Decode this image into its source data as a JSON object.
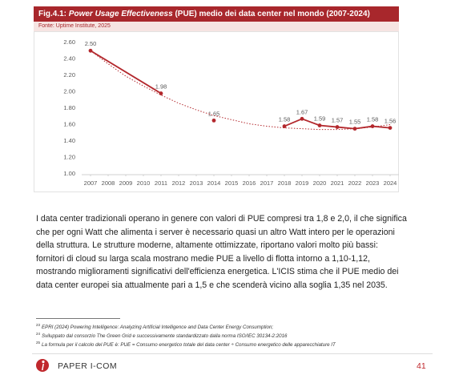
{
  "chart_data": {
    "type": "line",
    "title_parts": [
      "Fig.4.1: ",
      "Power Usage Effectiveness",
      " (PUE) medio dei data center nel mondo (2007-2024)"
    ],
    "source": "Fonte: Uptime Institute, 2025",
    "xlim": [
      2006.5,
      2024.5
    ],
    "xticks": [
      2007,
      2008,
      2009,
      2010,
      2011,
      2012,
      2013,
      2014,
      2015,
      2016,
      2017,
      2018,
      2019,
      2020,
      2021,
      2022,
      2023,
      2024
    ],
    "ylim": [
      1.0,
      2.6
    ],
    "yticks": [
      {
        "value": 1.0,
        "label": "1.00"
      },
      {
        "value": 1.2,
        "label": "1.20"
      },
      {
        "value": 1.4,
        "label": "1.40"
      },
      {
        "value": 1.6,
        "label": "1.60"
      },
      {
        "value": 1.8,
        "label": "1.80"
      },
      {
        "value": 2.0,
        "label": "2.00"
      },
      {
        "value": 2.2,
        "label": "2.20"
      },
      {
        "value": 2.4,
        "label": "2.40"
      },
      {
        "value": 2.6,
        "label": "2.60"
      }
    ],
    "grid": false,
    "series": [
      {
        "color": "#b3282d",
        "x": [
          2007,
          2011
        ],
        "values": [
          2.5,
          1.98
        ],
        "value_labels": [
          "2.50",
          "1.98"
        ]
      },
      {
        "color": "#b3282d",
        "x": [
          2014
        ],
        "values": [
          1.65
        ],
        "value_labels": [
          "1.65"
        ]
      },
      {
        "color": "#b3282d",
        "x": [
          2018,
          2019,
          2020,
          2021,
          2022,
          2023,
          2024
        ],
        "values": [
          1.58,
          1.67,
          1.59,
          1.57,
          1.55,
          1.58,
          1.56
        ],
        "value_labels": [
          "1.58",
          "1.67",
          "1.59",
          "1.57",
          "1.55",
          "1.58",
          "1.56"
        ]
      },
      {
        "color": "#b3282d",
        "style": "dotted",
        "x": [
          2007,
          2008,
          2009,
          2010,
          2011,
          2012,
          2013,
          2014,
          2015,
          2016,
          2017,
          2018,
          2019,
          2020,
          2021,
          2022,
          2023,
          2024
        ],
        "values": [
          2.5,
          2.34,
          2.19,
          2.07,
          1.96,
          1.86,
          1.78,
          1.71,
          1.66,
          1.61,
          1.58,
          1.56,
          1.55,
          1.54,
          1.54,
          1.55,
          1.57,
          1.6
        ]
      }
    ]
  },
  "body_lines": [
    "I data center tradizionali operano in genere con valori di PUE compresi tra 1,8 e 2,0, il che significa",
    "che per ogni Watt che alimenta i server è necessario quasi un altro Watt intero per le operazioni",
    "della struttura. Le strutture moderne, altamente ottimizzate, riportano valori molto più bassi:",
    "fornitori di cloud su larga scala mostrano medie PUE a livello di flotta intorno a 1,10-1,12,",
    "mostrando miglioramenti significativi dell'efficienza energetica. L'ICIS stima che il PUE medio dei",
    "data center europei sia attualmente pari a 1,5 e che scenderà vicino alla soglia 1,35 nel 2035."
  ],
  "footnotes": [
    {
      "number": "23",
      "text": "EPRI (2024) Powering Intelligence: Analyzing Artificial Intelligence and Data Center Energy Consumption;"
    },
    {
      "number": "24",
      "text": "Sviluppato dal consorzio The Green Grid e successivamente standardizzato dalla norma ISO/IEC 30134-2:2016"
    },
    {
      "number": "25",
      "text": "La formula per il calcolo del PUE è: PUE = Consumo energetico totale del data center ÷ Consumo energetico delle apparecchiature IT"
    }
  ],
  "footer": {
    "brand": "PAPER I-COM",
    "page": "41"
  }
}
